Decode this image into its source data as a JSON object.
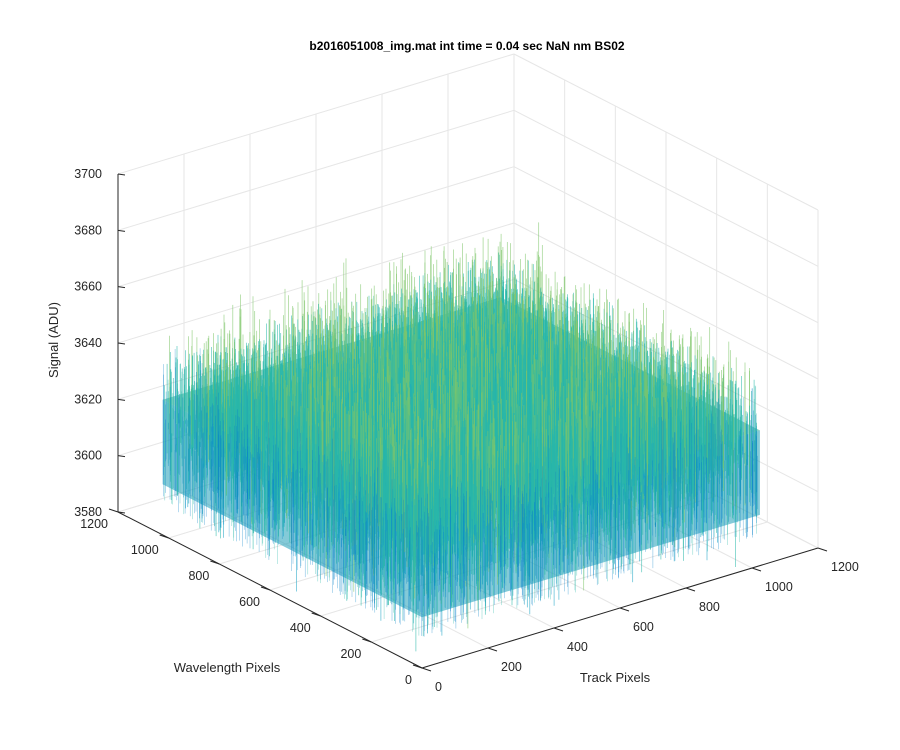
{
  "chart_data": {
    "type": "surface",
    "title": "b2016051008_img.mat int time = 0.04 sec  NaN nm BS02",
    "xlabel": "Track Pixels",
    "ylabel": "Wavelength Pixels",
    "zlabel": "Signal (ADU)",
    "xlim": [
      0,
      1200
    ],
    "ylim": [
      0,
      1200
    ],
    "zlim": [
      3580,
      3700
    ],
    "xticks": [
      "0",
      "200",
      "400",
      "600",
      "800",
      "1000",
      "1200"
    ],
    "yticks": [
      "0",
      "200",
      "400",
      "600",
      "800",
      "1000",
      "1200"
    ],
    "zticks": [
      "3580",
      "3600",
      "3620",
      "3640",
      "3660",
      "3680",
      "3700"
    ],
    "grid": true,
    "surface": {
      "x_range": [
        0,
        1024
      ],
      "y_range": [
        0,
        1024
      ],
      "mean_signal": 3628,
      "min_signal": 3590,
      "max_signal": 3685,
      "colormap": [
        "#0072bd",
        "#1aa3c4",
        "#2ab7a9",
        "#7fc66a",
        "#f0d046"
      ]
    }
  }
}
